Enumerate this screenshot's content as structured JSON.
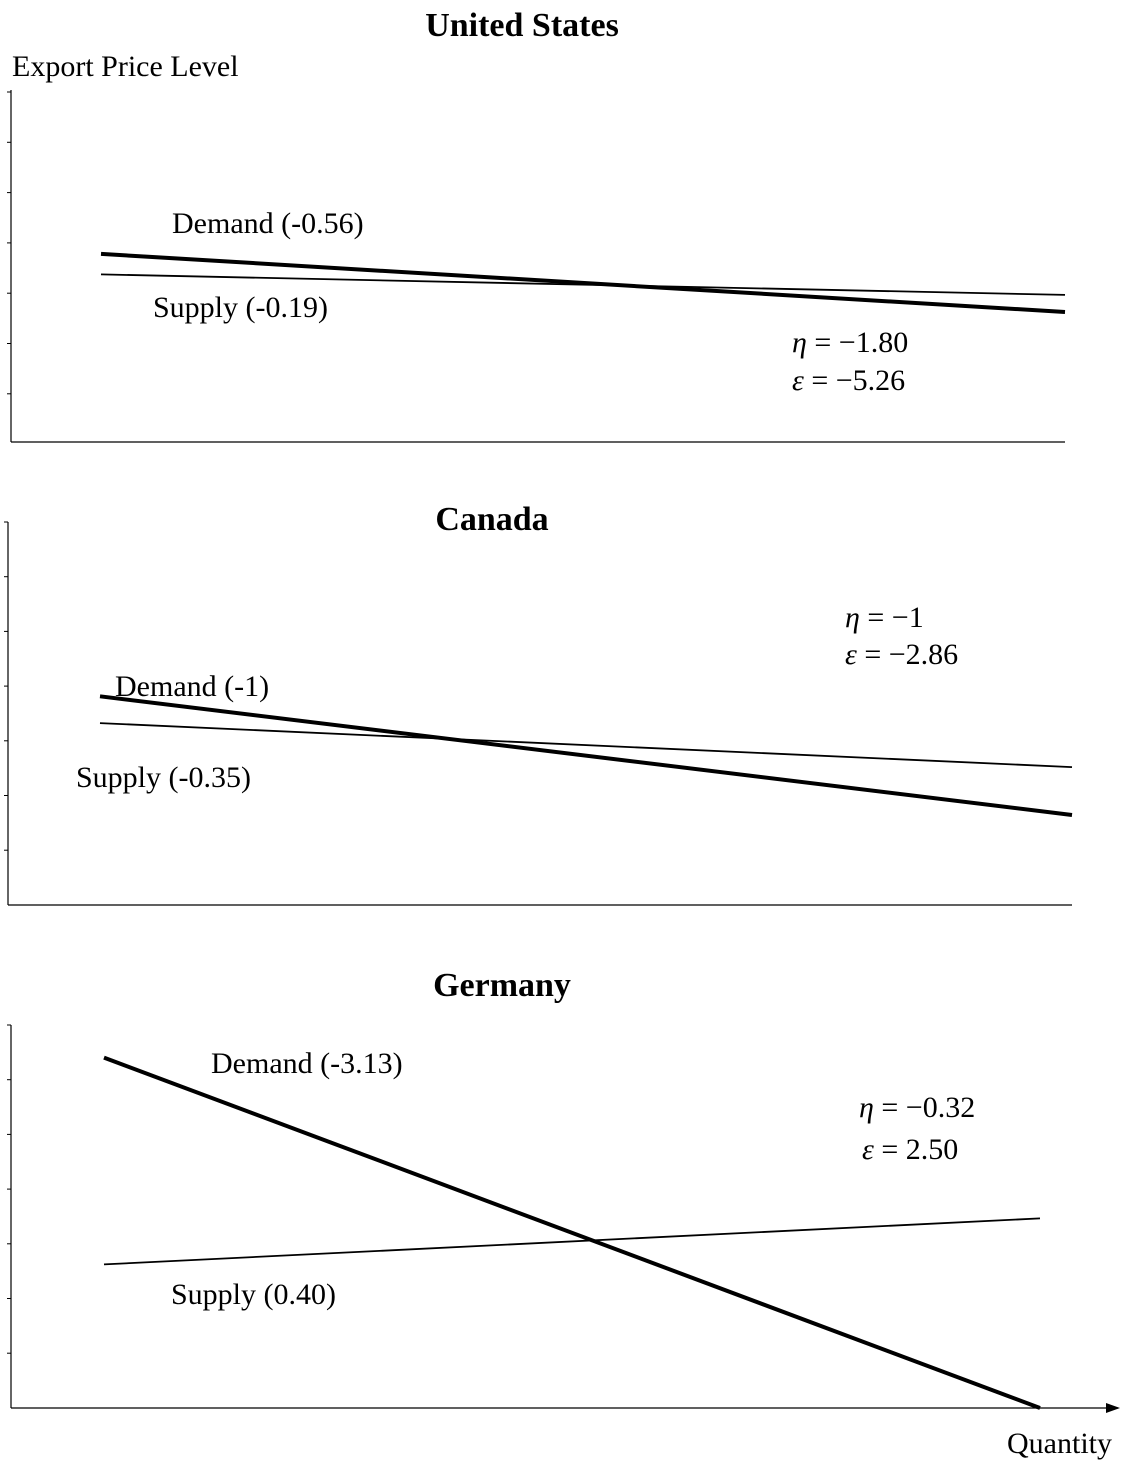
{
  "y_axis_label": "Export Price Level",
  "x_axis_label": "Quantity",
  "chart_data": [
    {
      "type": "line",
      "title": "United States",
      "series": [
        {
          "name": "Demand (-0.56)",
          "x": [
            0,
            1
          ],
          "y": [
            0.55,
            0.38
          ]
        },
        {
          "name": "Supply (-0.19)",
          "x": [
            0,
            1
          ],
          "y": [
            0.49,
            0.43
          ]
        }
      ],
      "annotations": [
        {
          "symbol": "η",
          "text": " = −1.80"
        },
        {
          "symbol": "ε",
          "text": " = −5.26"
        }
      ]
    },
    {
      "type": "line",
      "title": "Canada",
      "series": [
        {
          "name": "Demand (-1)",
          "x": [
            0,
            1
          ],
          "y": [
            0.545,
            0.235
          ]
        },
        {
          "name": "Supply (-0.35)",
          "x": [
            0,
            1
          ],
          "y": [
            0.475,
            0.36
          ]
        }
      ],
      "annotations": [
        {
          "symbol": "η",
          "text": " = −1"
        },
        {
          "symbol": "ε",
          "text": " = −2.86"
        }
      ]
    },
    {
      "type": "line",
      "title": "Germany",
      "series": [
        {
          "name": "Demand (-3.13)",
          "x": [
            0,
            1
          ],
          "y": [
            0.915,
            0.0
          ]
        },
        {
          "name": "Supply (0.40)",
          "x": [
            0,
            1
          ],
          "y": [
            0.375,
            0.495
          ]
        }
      ],
      "annotations": [
        {
          "symbol": "η",
          "text": " = −0.32"
        },
        {
          "symbol": "ε",
          "text": " = 2.50"
        }
      ]
    }
  ]
}
